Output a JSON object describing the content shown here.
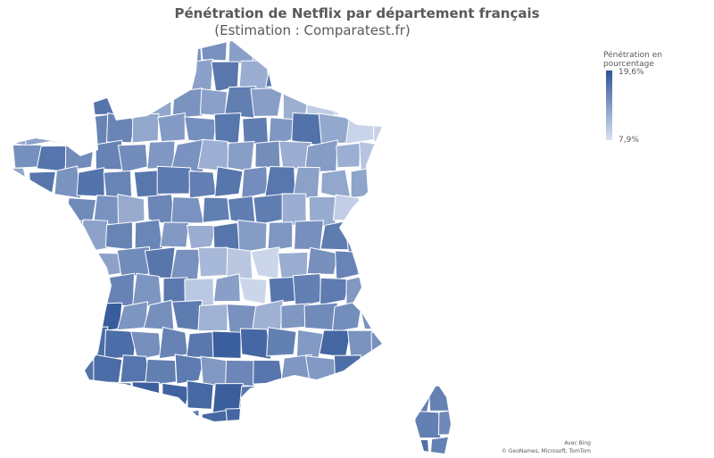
{
  "title": "Pénétration de Netflix par département français",
  "subtitle": "(Estimation : Comparatest.fr)",
  "legend": {
    "title": "Pénétration en pourcentage",
    "max_label": "19,6%",
    "min_label": "7,9%",
    "max_value": 19.6,
    "min_value": 7.9,
    "color_max": "#2F5597",
    "color_min": "#D9E1F2"
  },
  "attribution": {
    "line1": "Avec Bing",
    "line2": "© GeoNames, Microsoft, TomTom"
  }
}
